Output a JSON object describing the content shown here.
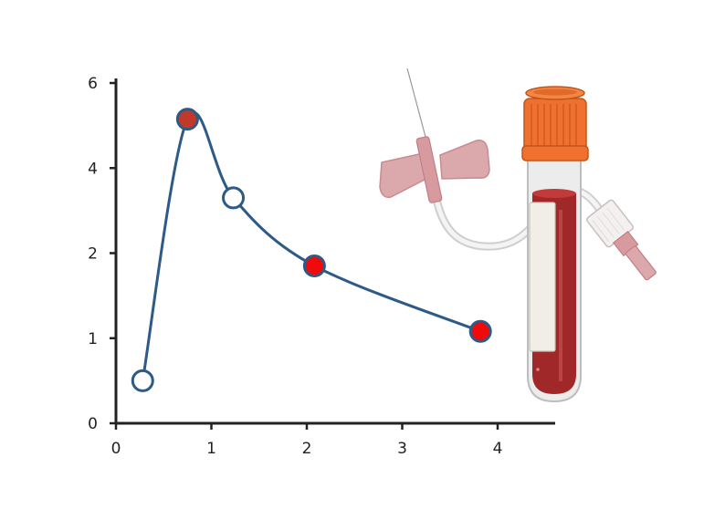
{
  "chart_data": {
    "type": "line",
    "title": "",
    "xlabel": "",
    "ylabel": "",
    "xlim": [
      0,
      4.6
    ],
    "ylim": [
      0,
      6
    ],
    "x_ticks": [
      {
        "value": 0,
        "label": "0"
      },
      {
        "value": 1,
        "label": "1"
      },
      {
        "value": 2,
        "label": "2"
      },
      {
        "value": 3,
        "label": "3"
      },
      {
        "value": 4,
        "label": "4"
      }
    ],
    "y_ticks": [
      {
        "value": 0,
        "label": "0"
      },
      {
        "value": 1,
        "label": "1"
      },
      {
        "value": 2,
        "label": "2"
      },
      {
        "value": 4,
        "label": "4"
      },
      {
        "value": 6,
        "label": "6"
      }
    ],
    "y_scale_note": "non-uniform tick spacing: 0,1,2,4,6 evenly spaced",
    "grid": false,
    "legend": "none",
    "series": [
      {
        "values": [
          {
            "x": 0.28,
            "y": 0.5,
            "marker": "open"
          },
          {
            "x": 0.75,
            "y": 5.15,
            "marker": "filled-dark-red"
          },
          {
            "x": 1.23,
            "y": 3.3,
            "marker": "open"
          },
          {
            "x": 2.08,
            "y": 1.85,
            "marker": "filled-red"
          },
          {
            "x": 3.82,
            "y": 1.08,
            "marker": "filled-red"
          }
        ]
      }
    ],
    "colors": {
      "line": "#2d5a87",
      "axis": "#222222",
      "marker_open_fill": "#ffffff",
      "marker_dark_red": "#c0392b",
      "marker_red": "#f00a0a"
    }
  },
  "illustration": {
    "items": [
      "butterfly-needle-icon",
      "blood-collection-tube-icon"
    ],
    "colors": {
      "cap": "#f07030",
      "blood": "#a02828",
      "butterfly": "#dba8ab"
    }
  }
}
